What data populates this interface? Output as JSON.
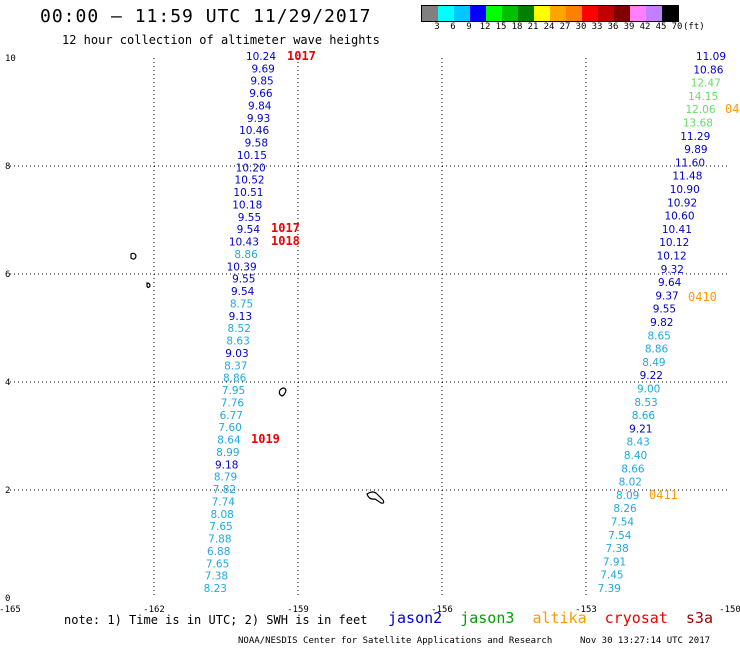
{
  "header": {
    "title": "00:00 – 11:59 UTC 11/29/2017",
    "subtitle": "12 hour collection of altimeter wave heights"
  },
  "colorbar": {
    "colors": [
      "#808080",
      "#00ffff",
      "#00c8ff",
      "#0000ff",
      "#00ff00",
      "#00c000",
      "#008000",
      "#ffff00",
      "#ffa500",
      "#ff8000",
      "#ff0000",
      "#c00000",
      "#800000",
      "#ff80ff",
      "#c080ff",
      "#000000"
    ],
    "labels": [
      "3",
      "6",
      "9",
      "12",
      "15",
      "18",
      "21",
      "24",
      "27",
      "30",
      "33",
      "36",
      "39",
      "42",
      "45",
      "70",
      "(ft)"
    ]
  },
  "axes": {
    "x_ticks": [
      "-165",
      "-162",
      "-159",
      "-156",
      "-153",
      "-150"
    ],
    "y_ticks": [
      "0",
      "2",
      "4",
      "6",
      "8",
      "10"
    ]
  },
  "satellite_colors": {
    "jason2": "#0000cc",
    "jason3": "#00a000",
    "altika": "#ff9900",
    "cryosat": "#ee0000",
    "s3a": "#aa0000",
    "pressure": "#ee0000",
    "time_label": "#ff9900"
  },
  "track_left": [
    {
      "value": "10.24",
      "color": "#0000cc"
    },
    {
      "value": "9.69",
      "color": "#0000cc"
    },
    {
      "value": "9.85",
      "color": "#0000cc"
    },
    {
      "value": "9.66",
      "color": "#0000cc"
    },
    {
      "value": "9.84",
      "color": "#0000cc"
    },
    {
      "value": "9.93",
      "color": "#0000cc"
    },
    {
      "value": "10.46",
      "color": "#0000cc"
    },
    {
      "value": "9.58",
      "color": "#0000cc"
    },
    {
      "value": "10.15",
      "color": "#0000cc"
    },
    {
      "value": "10.20",
      "color": "#0000cc"
    },
    {
      "value": "10.52",
      "color": "#0000cc"
    },
    {
      "value": "10.51",
      "color": "#0000cc"
    },
    {
      "value": "10.18",
      "color": "#0000cc"
    },
    {
      "value": "9.55",
      "color": "#0000cc"
    },
    {
      "value": "9.54",
      "color": "#0000cc"
    },
    {
      "value": "10.43",
      "color": "#0000cc"
    },
    {
      "value": "8.86",
      "color": "#1eaadd"
    },
    {
      "value": "10.39",
      "color": "#0000cc"
    },
    {
      "value": "9.55",
      "color": "#0000cc"
    },
    {
      "value": "9.54",
      "color": "#0000cc"
    },
    {
      "value": "8.75",
      "color": "#1eaadd"
    },
    {
      "value": "9.13",
      "color": "#0000cc"
    },
    {
      "value": "8.52",
      "color": "#1eaadd"
    },
    {
      "value": "8.63",
      "color": "#1eaadd"
    },
    {
      "value": "9.03",
      "color": "#0000cc"
    },
    {
      "value": "8.37",
      "color": "#1eaadd"
    },
    {
      "value": "8.86",
      "color": "#1eaadd"
    },
    {
      "value": "7.95",
      "color": "#1eaadd"
    },
    {
      "value": "7.76",
      "color": "#1eaadd"
    },
    {
      "value": "6.77",
      "color": "#1eaadd"
    },
    {
      "value": "7.60",
      "color": "#1eaadd"
    },
    {
      "value": "8.64",
      "color": "#1eaadd"
    },
    {
      "value": "8.99",
      "color": "#1eaadd"
    },
    {
      "value": "9.18",
      "color": "#0000cc"
    },
    {
      "value": "8.79",
      "color": "#1eaadd"
    },
    {
      "value": "7.82",
      "color": "#1eaadd"
    },
    {
      "value": "7.74",
      "color": "#1eaadd"
    },
    {
      "value": "8.08",
      "color": "#1eaadd"
    },
    {
      "value": "7.65",
      "color": "#1eaadd"
    },
    {
      "value": "7.88",
      "color": "#1eaadd"
    },
    {
      "value": "6.88",
      "color": "#1eaadd"
    },
    {
      "value": "7.65",
      "color": "#1eaadd"
    },
    {
      "value": "7.38",
      "color": "#1eaadd"
    },
    {
      "value": "8.23",
      "color": "#1eaadd"
    }
  ],
  "track_right": [
    {
      "value": "11.09",
      "color": "#0000cc"
    },
    {
      "value": "10.86",
      "color": "#0000cc"
    },
    {
      "value": "12.47",
      "color": "#66dd66"
    },
    {
      "value": "14.15",
      "color": "#66dd66"
    },
    {
      "value": "12.06",
      "color": "#66dd66"
    },
    {
      "value": "13.68",
      "color": "#66dd66"
    },
    {
      "value": "11.29",
      "color": "#0000cc"
    },
    {
      "value": "9.89",
      "color": "#0000cc"
    },
    {
      "value": "11.60",
      "color": "#0000cc"
    },
    {
      "value": "11.48",
      "color": "#0000cc"
    },
    {
      "value": "10.90",
      "color": "#0000cc"
    },
    {
      "value": "10.92",
      "color": "#0000cc"
    },
    {
      "value": "10.60",
      "color": "#0000cc"
    },
    {
      "value": "10.41",
      "color": "#0000cc"
    },
    {
      "value": "10.12",
      "color": "#0000cc"
    },
    {
      "value": "10.12",
      "color": "#0000cc"
    },
    {
      "value": "9.32",
      "color": "#0000cc"
    },
    {
      "value": "9.64",
      "color": "#0000cc"
    },
    {
      "value": "9.37",
      "color": "#0000cc"
    },
    {
      "value": "9.55",
      "color": "#0000cc"
    },
    {
      "value": "9.82",
      "color": "#0000cc"
    },
    {
      "value": "8.65",
      "color": "#1eaadd"
    },
    {
      "value": "8.86",
      "color": "#1eaadd"
    },
    {
      "value": "8.49",
      "color": "#1eaadd"
    },
    {
      "value": "9.22",
      "color": "#0000cc"
    },
    {
      "value": "9.00",
      "color": "#1eaadd"
    },
    {
      "value": "8.53",
      "color": "#1eaadd"
    },
    {
      "value": "8.66",
      "color": "#1eaadd"
    },
    {
      "value": "9.21",
      "color": "#0000cc"
    },
    {
      "value": "8.43",
      "color": "#1eaadd"
    },
    {
      "value": "8.40",
      "color": "#1eaadd"
    },
    {
      "value": "8.66",
      "color": "#1eaadd"
    },
    {
      "value": "8.02",
      "color": "#1eaadd"
    },
    {
      "value": "8.09",
      "color": "#1eaadd"
    },
    {
      "value": "8.26",
      "color": "#1eaadd"
    },
    {
      "value": "7.54",
      "color": "#1eaadd"
    },
    {
      "value": "7.54",
      "color": "#1eaadd"
    },
    {
      "value": "7.38",
      "color": "#1eaadd"
    },
    {
      "value": "7.91",
      "color": "#1eaadd"
    },
    {
      "value": "7.45",
      "color": "#1eaadd"
    },
    {
      "value": "7.39",
      "color": "#1eaadd"
    }
  ],
  "pressure_labels": [
    "1017",
    "1017",
    "1018",
    "1019"
  ],
  "time_labels": [
    "04",
    "0410",
    "0411"
  ],
  "footer": {
    "note": "note:  1) Time is in UTC;  2) SWH is in feet",
    "satellites": [
      "jason2",
      "jason3",
      "altika",
      "cryosat",
      "s3a"
    ],
    "credit": "NOAA/NESDIS Center for Satellite Applications and Research",
    "stamp": "Nov 30 13:27:14 UTC 2017"
  }
}
